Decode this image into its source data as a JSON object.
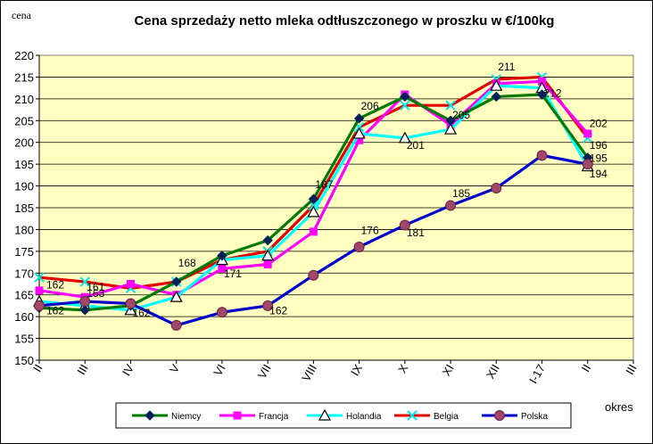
{
  "chart_data": {
    "type": "line",
    "title": "Cena sprzedaży netto mleka odtłuszczonego w proszku w €/100kg",
    "ylabel": "cena",
    "xlabel": "okres",
    "ylim": [
      150,
      220
    ],
    "yticks": [
      150,
      155,
      160,
      165,
      170,
      175,
      180,
      185,
      190,
      195,
      200,
      205,
      210,
      215,
      220
    ],
    "categories": [
      "II",
      "III",
      "IV",
      "V",
      "VI",
      "VII",
      "VIII",
      "IX",
      "X",
      "XI",
      "XII",
      "I-17",
      "II",
      "III"
    ],
    "grid": true,
    "legend": "bottom",
    "series": [
      {
        "name": "Niemcy",
        "color": "#007A00",
        "marker": "diamond",
        "values": [
          162,
          161.5,
          162.5,
          168,
          174,
          177.5,
          187,
          205.5,
          210.5,
          205,
          210.5,
          211,
          196.5,
          null
        ]
      },
      {
        "name": "Francja",
        "color": "#FF00FF",
        "marker": "square",
        "values": [
          166,
          164.5,
          167.5,
          165,
          171,
          172,
          179.5,
          200.5,
          211,
          204,
          213.5,
          214,
          202,
          null
        ]
      },
      {
        "name": "Holandia",
        "color": "#00FFFF",
        "marker": "triangle",
        "values": [
          163.5,
          162.5,
          161.5,
          164.5,
          173,
          174,
          184,
          202,
          201,
          203,
          213,
          212.5,
          194.5,
          null
        ]
      },
      {
        "name": "Belgia",
        "color": "#E00000",
        "marker": "x",
        "values": [
          169,
          168,
          166.5,
          168,
          173,
          175,
          185.5,
          203.5,
          208.5,
          208.5,
          214.5,
          215,
          201,
          null
        ]
      },
      {
        "name": "Polska",
        "color": "#0000CC",
        "marker": "circle",
        "values": [
          162.5,
          163.5,
          163,
          158,
          161,
          162.5,
          169.5,
          176,
          181,
          185.5,
          189.5,
          197,
          195,
          null
        ]
      }
    ],
    "data_labels": [
      {
        "text": "162",
        "cat": 0,
        "y": 166.5
      },
      {
        "text": "162",
        "cat": 0,
        "y": 160.5
      },
      {
        "text": "161",
        "cat": 1,
        "y": 166
      },
      {
        "text": "163",
        "cat": 1,
        "y": 164.5
      },
      {
        "text": "162",
        "cat": 2,
        "y": 160
      },
      {
        "text": "168",
        "cat": 3,
        "y": 171.5
      },
      {
        "text": "171",
        "cat": 4,
        "y": 169
      },
      {
        "text": "162",
        "cat": 5,
        "y": 160.5
      },
      {
        "text": "187",
        "cat": 6,
        "y": 189.5
      },
      {
        "text": "176",
        "cat": 7,
        "y": 179
      },
      {
        "text": "206",
        "cat": 7,
        "y": 207.5
      },
      {
        "text": "201",
        "cat": 8,
        "y": 198.5
      },
      {
        "text": "181",
        "cat": 8,
        "y": 178.5
      },
      {
        "text": "185",
        "cat": 9,
        "y": 187.5
      },
      {
        "text": "205",
        "cat": 9,
        "y": 205.5
      },
      {
        "text": "211",
        "cat": 10,
        "y": 216.5
      },
      {
        "text": "212",
        "cat": 11,
        "y": 210.5
      },
      {
        "text": "202",
        "cat": 12,
        "y": 203.5
      },
      {
        "text": "196",
        "cat": 12,
        "y": 198.5
      },
      {
        "text": "195",
        "cat": 12,
        "y": 195.5
      },
      {
        "text": "194",
        "cat": 12,
        "y": 192
      }
    ]
  }
}
